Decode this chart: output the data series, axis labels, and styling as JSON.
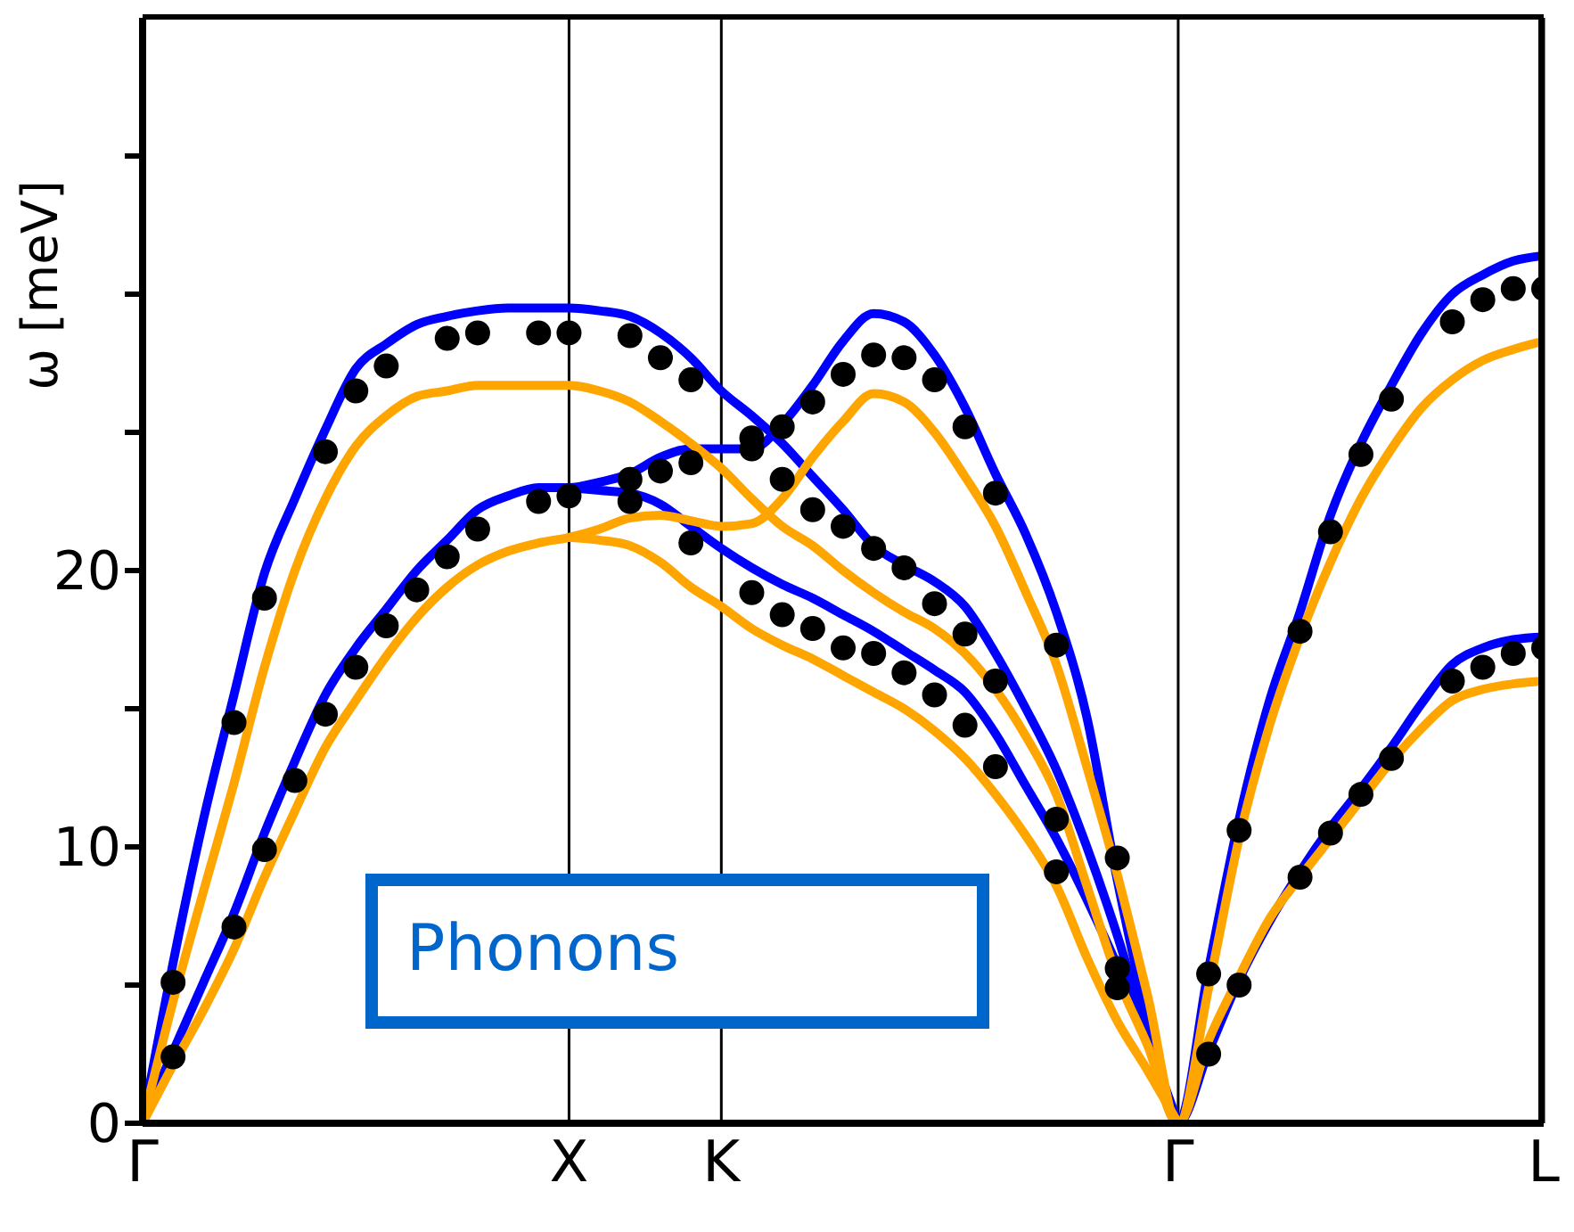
{
  "chart_data": {
    "type": "line",
    "ylabel": "ω [meV]",
    "annotations": [
      "Phonons"
    ],
    "categories": [
      "Γ",
      null,
      null,
      null,
      null,
      null,
      null,
      null,
      null,
      null,
      null,
      null,
      null,
      null,
      "X",
      null,
      null,
      null,
      null,
      "K",
      null,
      null,
      null,
      null,
      null,
      null,
      null,
      null,
      null,
      null,
      null,
      null,
      null,
      null,
      "Γ",
      null,
      null,
      null,
      null,
      null,
      null,
      null,
      null,
      null,
      null,
      null,
      "L"
    ],
    "ylim": [
      0,
      40
    ],
    "yticks": [
      0,
      {
        "value": 5,
        "label": null
      },
      10,
      {
        "value": 15,
        "label": null
      },
      20,
      {
        "value": 25,
        "label": null
      },
      {
        "value": 30,
        "label": null
      },
      {
        "value": 35,
        "label": null
      }
    ],
    "grid": "x",
    "series": [
      {
        "color": "#0000ff",
        "values": [
          0,
          5.8,
          11.0,
          15.5,
          19.9,
          22.6,
          25.1,
          27.3,
          28.2,
          28.9,
          29.2,
          29.4,
          29.5,
          29.5,
          29.5,
          29.4,
          29.2,
          28.6,
          27.7,
          26.5,
          25.6,
          24.6,
          23.4,
          22.2,
          20.9,
          20.2,
          19.6,
          18.7,
          17.0,
          15.0,
          12.8,
          10.0,
          6.8,
          3.2,
          0,
          5.6,
          11.0,
          15.3,
          18.5,
          22.0,
          24.6,
          26.7,
          28.6,
          30.0,
          30.7,
          31.2,
          31.4
        ]
      },
      {
        "color": "#0000ff",
        "values": [
          0,
          2.6,
          5.1,
          7.6,
          10.5,
          13.1,
          15.5,
          17.2,
          18.6,
          20.0,
          21.1,
          22.2,
          22.7,
          23.0,
          23.0,
          23.2,
          23.5,
          24.1,
          24.4,
          24.4,
          24.4,
          25.3,
          26.7,
          28.3,
          29.3,
          29.0,
          27.8,
          25.9,
          23.5,
          21.3,
          18.5,
          14.7,
          8.8,
          3.8,
          0,
          2.6,
          5.2,
          7.3,
          9.1,
          10.7,
          12.1,
          13.6,
          15.2,
          16.6,
          17.2,
          17.5,
          17.6
        ]
      },
      {
        "color": "#0000ff",
        "values": [
          null,
          null,
          null,
          null,
          null,
          null,
          null,
          null,
          null,
          null,
          null,
          null,
          null,
          null,
          23.0,
          22.9,
          22.8,
          22.4,
          21.6,
          20.8,
          20.1,
          19.5,
          19.0,
          18.4,
          17.8,
          17.1,
          16.4,
          15.6,
          14.1,
          12.2,
          10.3,
          8.1,
          5.7,
          3.0,
          0,
          null,
          null,
          null,
          null,
          null,
          null,
          null,
          null,
          null,
          null,
          null,
          null
        ]
      },
      {
        "color": "#ffa500",
        "values": [
          0,
          4.4,
          8.4,
          12.3,
          16.5,
          20.0,
          22.6,
          24.5,
          25.6,
          26.3,
          26.5,
          26.7,
          26.7,
          26.7,
          26.7,
          26.5,
          26.1,
          25.4,
          24.6,
          23.7,
          22.6,
          21.6,
          20.9,
          20.0,
          19.2,
          18.5,
          17.9,
          17.0,
          15.7,
          14.0,
          11.9,
          8.6,
          5.3,
          2.8,
          0,
          4.9,
          10.3,
          14.4,
          17.6,
          20.3,
          22.6,
          24.4,
          25.9,
          26.9,
          27.6,
          28.0,
          28.3
        ]
      },
      {
        "color": "#ffa500",
        "values": [
          0,
          2.1,
          4.1,
          6.3,
          8.9,
          11.3,
          13.6,
          15.3,
          16.9,
          18.3,
          19.4,
          20.2,
          20.7,
          21.0,
          21.2,
          21.5,
          21.9,
          22.0,
          21.8,
          21.6,
          21.7,
          22.6,
          24.1,
          25.4,
          26.4,
          26.1,
          25.0,
          23.4,
          21.6,
          19.2,
          16.6,
          12.9,
          9.0,
          4.6,
          0,
          3.0,
          5.3,
          7.4,
          8.9,
          10.3,
          11.7,
          13.1,
          14.3,
          15.3,
          15.7,
          15.9,
          16.0
        ]
      },
      {
        "color": "#ffa500",
        "values": [
          null,
          null,
          null,
          null,
          null,
          null,
          null,
          null,
          null,
          null,
          null,
          null,
          null,
          null,
          21.2,
          21.1,
          20.9,
          20.3,
          19.4,
          18.7,
          17.9,
          17.3,
          16.8,
          16.2,
          15.6,
          15.0,
          14.2,
          13.2,
          11.9,
          10.4,
          8.6,
          6.0,
          3.7,
          1.9,
          0,
          null,
          null,
          null,
          null,
          null,
          null,
          null,
          null,
          null,
          null,
          null,
          null
        ]
      },
      {
        "type": "scatter",
        "marker": "circle",
        "color": "#000000",
        "values": [
          null,
          5.1,
          null,
          14.5,
          19.0,
          null,
          24.3,
          26.5,
          27.4,
          null,
          28.4,
          28.6,
          null,
          28.6,
          28.6,
          null,
          28.5,
          27.7,
          26.9,
          null,
          24.8,
          25.2,
          26.1,
          27.1,
          27.8,
          27.7,
          26.9,
          25.2,
          22.8,
          null,
          17.3,
          null,
          9.6,
          null,
          null,
          5.4,
          10.6,
          null,
          17.8,
          21.4,
          24.2,
          26.2,
          null,
          29.0,
          29.8,
          30.2,
          30.2
        ]
      },
      {
        "type": "scatter",
        "marker": "circle",
        "color": "#000000",
        "values": [
          null,
          2.4,
          null,
          7.1,
          9.9,
          12.4,
          14.8,
          16.5,
          18.0,
          19.3,
          20.5,
          21.5,
          null,
          22.5,
          22.7,
          null,
          23.3,
          23.6,
          23.9,
          null,
          24.4,
          23.3,
          22.2,
          21.6,
          20.8,
          20.1,
          18.8,
          17.7,
          16.0,
          null,
          11.0,
          null,
          5.6,
          null,
          null,
          2.5,
          5.0,
          null,
          8.9,
          10.5,
          11.9,
          13.2,
          null,
          16.0,
          16.5,
          17.0,
          17.2
        ]
      },
      {
        "type": "scatter",
        "marker": "circle",
        "color": "#000000",
        "values": [
          null,
          null,
          null,
          null,
          null,
          null,
          null,
          null,
          null,
          null,
          null,
          null,
          null,
          null,
          null,
          null,
          22.5,
          null,
          21.0,
          null,
          19.2,
          18.4,
          17.9,
          17.2,
          17.0,
          16.3,
          15.5,
          14.4,
          12.9,
          null,
          9.1,
          null,
          4.9,
          null,
          null,
          null,
          null,
          null,
          null,
          null,
          null,
          null,
          null,
          null,
          null,
          null,
          null
        ]
      }
    ]
  }
}
